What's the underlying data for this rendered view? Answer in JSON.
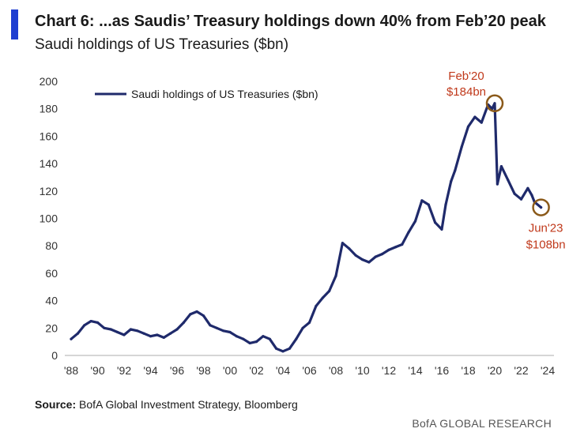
{
  "header": {
    "title": "Chart 6: ...as Saudis’ Treasury holdings down 40% from Feb’20 peak",
    "subtitle": "Saudi holdings of US Treasuries ($bn)"
  },
  "footer": {
    "source_label": "Source:",
    "source_text": "BofA Global Investment Strategy, Bloomberg",
    "brand": "BofA GLOBAL RESEARCH"
  },
  "colors": {
    "accent": "#1f3fd1",
    "series": "#1f2a6b",
    "annotation": "#c0391b",
    "marker": "#8b5a1a"
  },
  "chart_data": {
    "type": "line",
    "title": "Saudi holdings of US Treasuries ($bn)",
    "xlabel": "",
    "ylabel": "",
    "ylim": [
      0,
      200
    ],
    "xlim": [
      1988,
      2024
    ],
    "yticks": [
      "0",
      "20",
      "40",
      "60",
      "80",
      "100",
      "120",
      "140",
      "160",
      "180",
      "200"
    ],
    "xticks": [
      "'88",
      "'90",
      "'92",
      "'94",
      "'96",
      "'98",
      "'00",
      "'02",
      "'04",
      "'06",
      "'08",
      "'10",
      "'12",
      "'14",
      "'16",
      "'18",
      "'20",
      "'22",
      "'24"
    ],
    "legend": {
      "position": "top-left",
      "label": "Saudi holdings of US Treasuries ($bn)"
    },
    "series": [
      {
        "name": "Saudi holdings of US Treasuries ($bn)",
        "x": [
          1988.0,
          1988.5,
          1989.0,
          1989.5,
          1990.0,
          1990.5,
          1991.0,
          1991.5,
          1992.0,
          1992.5,
          1993.0,
          1993.5,
          1994.0,
          1994.5,
          1995.0,
          1995.5,
          1996.0,
          1996.5,
          1997.0,
          1997.5,
          1998.0,
          1998.5,
          1999.0,
          1999.5,
          2000.0,
          2000.5,
          2001.0,
          2001.5,
          2002.0,
          2002.5,
          2003.0,
          2003.5,
          2004.0,
          2004.5,
          2005.0,
          2005.5,
          2006.0,
          2006.5,
          2007.0,
          2007.5,
          2008.0,
          2008.5,
          2009.0,
          2009.5,
          2010.0,
          2010.5,
          2011.0,
          2011.5,
          2012.0,
          2012.5,
          2013.0,
          2013.5,
          2014.0,
          2014.5,
          2015.0,
          2015.5,
          2016.0,
          2016.3,
          2016.7,
          2017.0,
          2017.5,
          2018.0,
          2018.5,
          2019.0,
          2019.5,
          2019.8,
          2020.0,
          2020.2,
          2020.5,
          2021.0,
          2021.5,
          2022.0,
          2022.5,
          2022.8,
          2023.0,
          2023.5
        ],
        "values": [
          12,
          16,
          22,
          25,
          24,
          20,
          19,
          17,
          15,
          19,
          18,
          16,
          14,
          15,
          13,
          16,
          19,
          24,
          30,
          32,
          29,
          22,
          20,
          18,
          17,
          14,
          12,
          9,
          10,
          14,
          12,
          5,
          3,
          5,
          12,
          20,
          24,
          36,
          42,
          47,
          58,
          82,
          78,
          73,
          70,
          68,
          72,
          74,
          77,
          79,
          81,
          90,
          98,
          113,
          110,
          97,
          92,
          110,
          127,
          135,
          152,
          167,
          174,
          170,
          183,
          180,
          184,
          125,
          138,
          128,
          118,
          114,
          122,
          117,
          112,
          108
        ]
      }
    ],
    "annotations": [
      {
        "label_line1": "Feb'20",
        "label_line2": "$184bn",
        "x": 2020.0,
        "y": 184
      },
      {
        "label_line1": "Jun'23",
        "label_line2": "$108bn",
        "x": 2023.5,
        "y": 108
      }
    ]
  }
}
